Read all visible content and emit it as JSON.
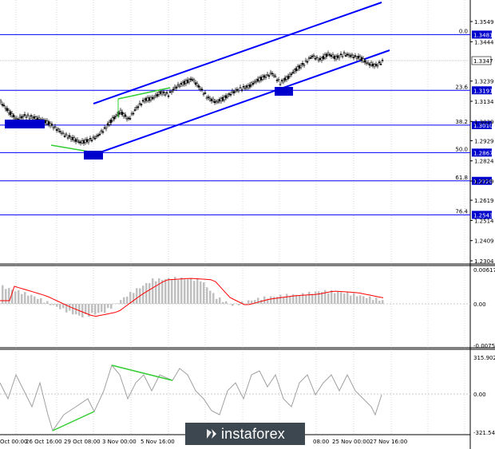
{
  "watermark": {
    "text": "instaforex",
    "icon": "instaforex-logo-icon"
  },
  "price_scale": {
    "ticks": [
      "1.3549",
      "1.3444",
      "1.3239",
      "1.3134",
      "1.3029",
      "1.2929",
      "1.2824",
      "1.2719",
      "1.2619",
      "1.2514",
      "1.2409",
      "1.2304"
    ]
  },
  "fib_levels": [
    {
      "ratio": "0.0",
      "price": "1.3481"
    },
    {
      "ratio": "23.6",
      "price": "1.3191"
    },
    {
      "ratio": "38.2",
      "price": "1.3010"
    },
    {
      "ratio": "50.0",
      "price": "1.2867"
    },
    {
      "ratio": "61.8",
      "price": "1.2720"
    },
    {
      "ratio": "76.4",
      "price": "1.2543"
    }
  ],
  "current_price": "1.3347",
  "macd": {
    "ticks": [
      "0.00617",
      "0.00",
      "-0.00752"
    ]
  },
  "cci": {
    "ticks": [
      "315.9023",
      "0.00",
      "-321.547"
    ]
  },
  "dates": [
    "Oct 00:00",
    "26 Oct 16:00",
    "29 Oct 08:00",
    "3 Nov 00:00",
    "5 Nov 16:00",
    "",
    "",
    "",
    "08:00",
    "25 Nov 00:00",
    "27 Nov 16:00"
  ],
  "colors": {
    "channel": "#0000ff",
    "level": "#0000ff",
    "divergence": "#32cd32",
    "signal": "#ff0000",
    "histogram": "#c0c0c0",
    "badge": "#0000cc"
  }
}
